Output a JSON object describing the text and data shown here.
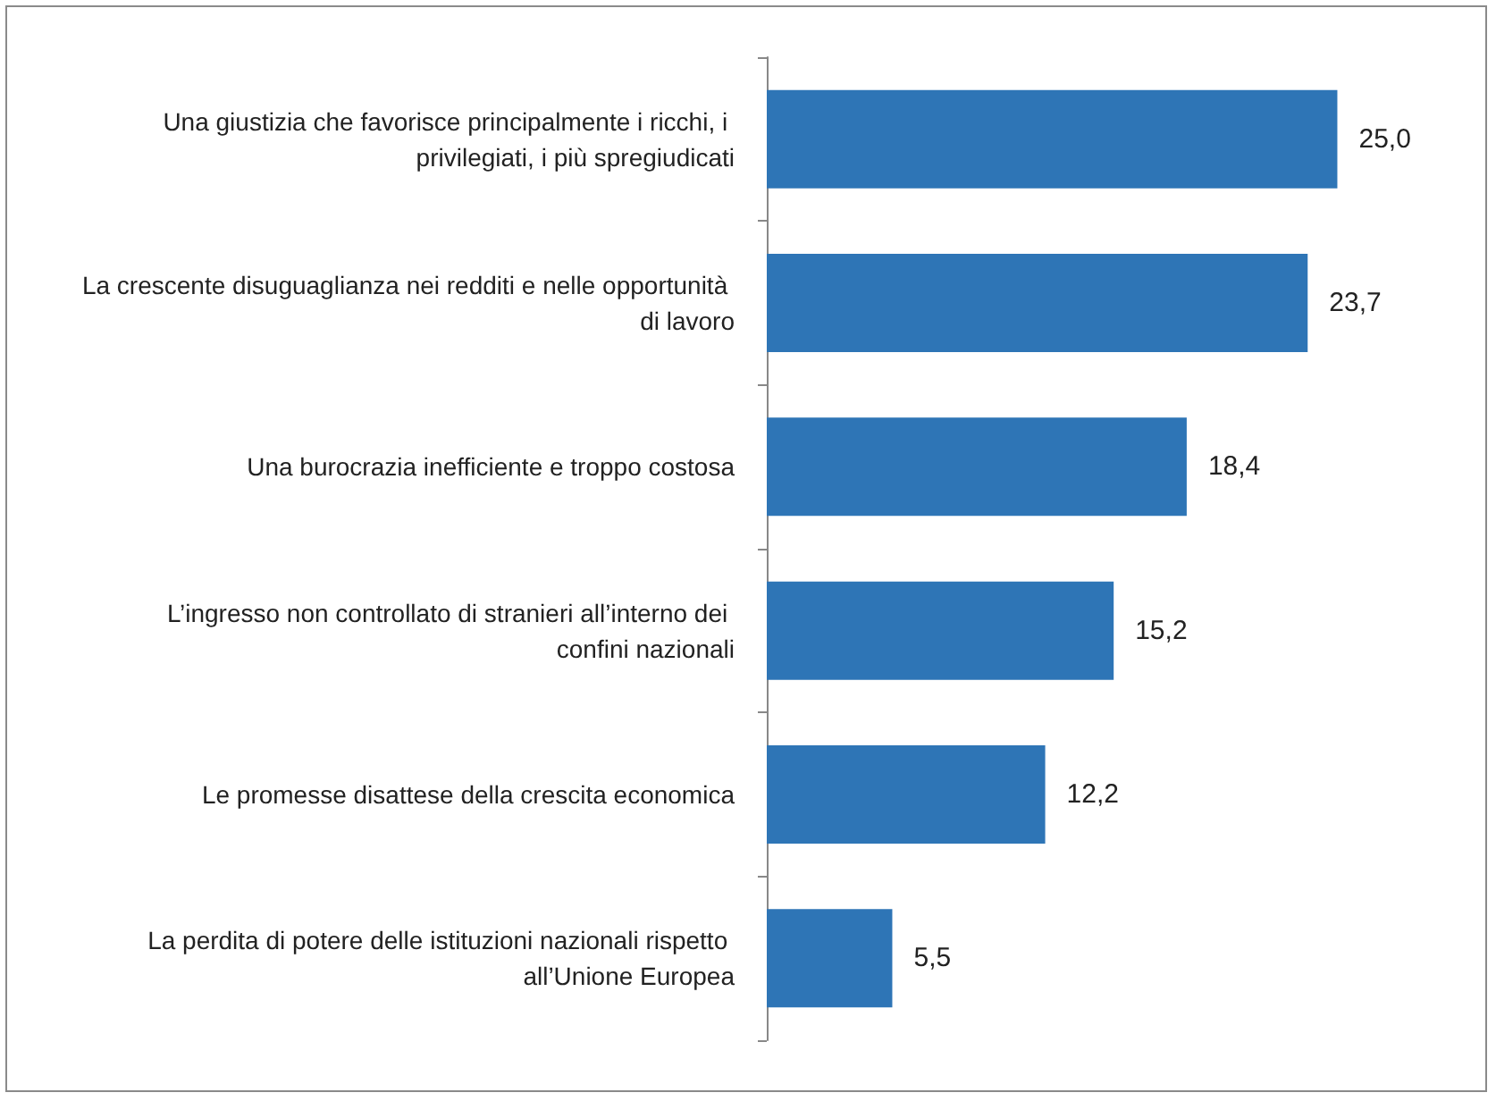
{
  "chart_data": {
    "type": "bar",
    "orientation": "horizontal",
    "categories": [
      "Una giustizia che favorisce principalmente i ricchi, i privilegiati, i più spregiudicati",
      "La crescente disuguaglianza nei redditi e nelle opportunità di lavoro",
      "Una burocrazia inefficiente e troppo costosa",
      "L’ingresso non controllato di stranieri all’interno dei confini nazionali",
      "Le promesse disattese della crescita economica",
      "La perdita di potere delle istituzioni nazionali rispetto all’Unione Europea"
    ],
    "values": [
      25.0,
      23.7,
      18.4,
      15.2,
      12.2,
      5.5
    ],
    "value_labels": [
      "25,0",
      "23,7",
      "18,4",
      "15,2",
      "12,2",
      "5,5"
    ],
    "color": "#2e75b6"
  }
}
